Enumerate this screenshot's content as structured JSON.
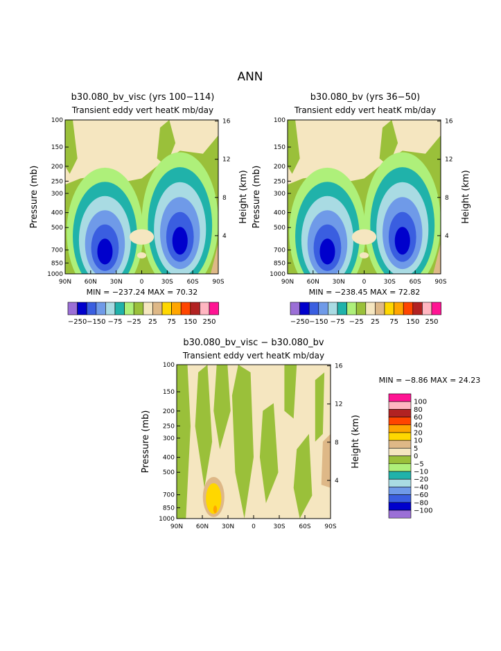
{
  "page_title": "ANN",
  "colors": {
    "scale_top": [
      "#9b6fd6",
      "#0000cc",
      "#3a5ee0",
      "#6f9ae8",
      "#a9dbe3",
      "#20b2aa",
      "#aef07a",
      "#9ac03a",
      "#f5e6c0",
      "#deb887",
      "#ffd700",
      "#ffa500",
      "#ff4500",
      "#b22222",
      "#ffb6c1",
      "#ff1493"
    ],
    "scale_diff": [
      "#ff1493",
      "#ffb6c1",
      "#b22222",
      "#ff4500",
      "#ffa500",
      "#ffd700",
      "#deb887",
      "#f5e6c0",
      "#9ac03a",
      "#aef07a",
      "#20b2aa",
      "#a9dbe3",
      "#6f9ae8",
      "#3a5ee0",
      "#0000cc",
      "#9b6fd6"
    ]
  },
  "panels": {
    "left": {
      "title": "b30.080_bv_visc (yrs 100−114)",
      "subtitle": "Transient eddy vert heatK mb/day",
      "minmax": "MIN = −237.24   MAX =   70.32"
    },
    "right": {
      "title": "b30.080_bv (yrs 36−50)",
      "subtitle": "Transient eddy vert heatK mb/day",
      "minmax": "MIN = −238.45   MAX =   72.82"
    },
    "diff": {
      "title": "b30.080_bv_visc − b30.080_bv",
      "subtitle": "Transient eddy vert heatK mb/day",
      "minmax": "MIN =   −8.86   MAX =   24.23"
    }
  },
  "axes": {
    "ylabel": "Pressure (mb)",
    "ylabel_right": "Height (km)",
    "pressure_ticks": [
      "100",
      "150",
      "200",
      "250",
      "300",
      "400",
      "500",
      "700",
      "850",
      "1000"
    ],
    "height_ticks": [
      "16",
      "12",
      "8",
      "4"
    ],
    "lat_ticks": [
      "90N",
      "60N",
      "30N",
      "0",
      "30S",
      "60S",
      "90S"
    ]
  },
  "labelbar_top": [
    "−250",
    "−150",
    "−75",
    "−25",
    "25",
    "75",
    "150",
    "250"
  ],
  "labelbar_diff": [
    "100",
    "80",
    "60",
    "40",
    "20",
    "10",
    "5",
    "0",
    "−5",
    "−10",
    "−20",
    "−40",
    "−60",
    "−80",
    "−100"
  ],
  "chart_data": [
    {
      "type": "heatmap",
      "title": "b30.080_bv_visc (yrs 100−114)",
      "subtitle": "Transient eddy vert heatK mb/day",
      "xlabel": "",
      "ylabel": "Pressure (mb)",
      "y2label": "Height (km)",
      "x_ticks": [
        "90N",
        "60N",
        "30N",
        "0",
        "30S",
        "60S",
        "90S"
      ],
      "y_ticks_mb": [
        100,
        150,
        200,
        250,
        300,
        400,
        500,
        700,
        850,
        1000
      ],
      "y2_ticks_km": [
        16,
        12,
        8,
        4
      ],
      "levels": [
        -250,
        -200,
        -150,
        -100,
        -75,
        -50,
        -25,
        0,
        25,
        50,
        75,
        100,
        150,
        200,
        250
      ],
      "min": -237.24,
      "max": 70.32
    },
    {
      "type": "heatmap",
      "title": "b30.080_bv (yrs 36−50)",
      "subtitle": "Transient eddy vert heatK mb/day",
      "xlabel": "",
      "ylabel": "Pressure (mb)",
      "y2label": "Height (km)",
      "x_ticks": [
        "90N",
        "60N",
        "30N",
        "0",
        "30S",
        "60S",
        "90S"
      ],
      "y_ticks_mb": [
        100,
        150,
        200,
        250,
        300,
        400,
        500,
        700,
        850,
        1000
      ],
      "y2_ticks_km": [
        16,
        12,
        8,
        4
      ],
      "levels": [
        -250,
        -200,
        -150,
        -100,
        -75,
        -50,
        -25,
        0,
        25,
        50,
        75,
        100,
        150,
        200,
        250
      ],
      "min": -238.45,
      "max": 72.82
    },
    {
      "type": "heatmap",
      "title": "b30.080_bv_visc − b30.080_bv",
      "subtitle": "Transient eddy vert heatK mb/day",
      "xlabel": "",
      "ylabel": "Pressure (mb)",
      "y2label": "Height (km)",
      "x_ticks": [
        "90N",
        "60N",
        "30N",
        "0",
        "30S",
        "60S",
        "90S"
      ],
      "y_ticks_mb": [
        100,
        150,
        200,
        250,
        300,
        400,
        500,
        700,
        850,
        1000
      ],
      "y2_ticks_km": [
        16,
        12,
        8,
        4
      ],
      "levels": [
        -100,
        -80,
        -60,
        -40,
        -20,
        -10,
        -5,
        0,
        5,
        10,
        20,
        40,
        60,
        80,
        100
      ],
      "min": -8.86,
      "max": 24.23
    }
  ]
}
